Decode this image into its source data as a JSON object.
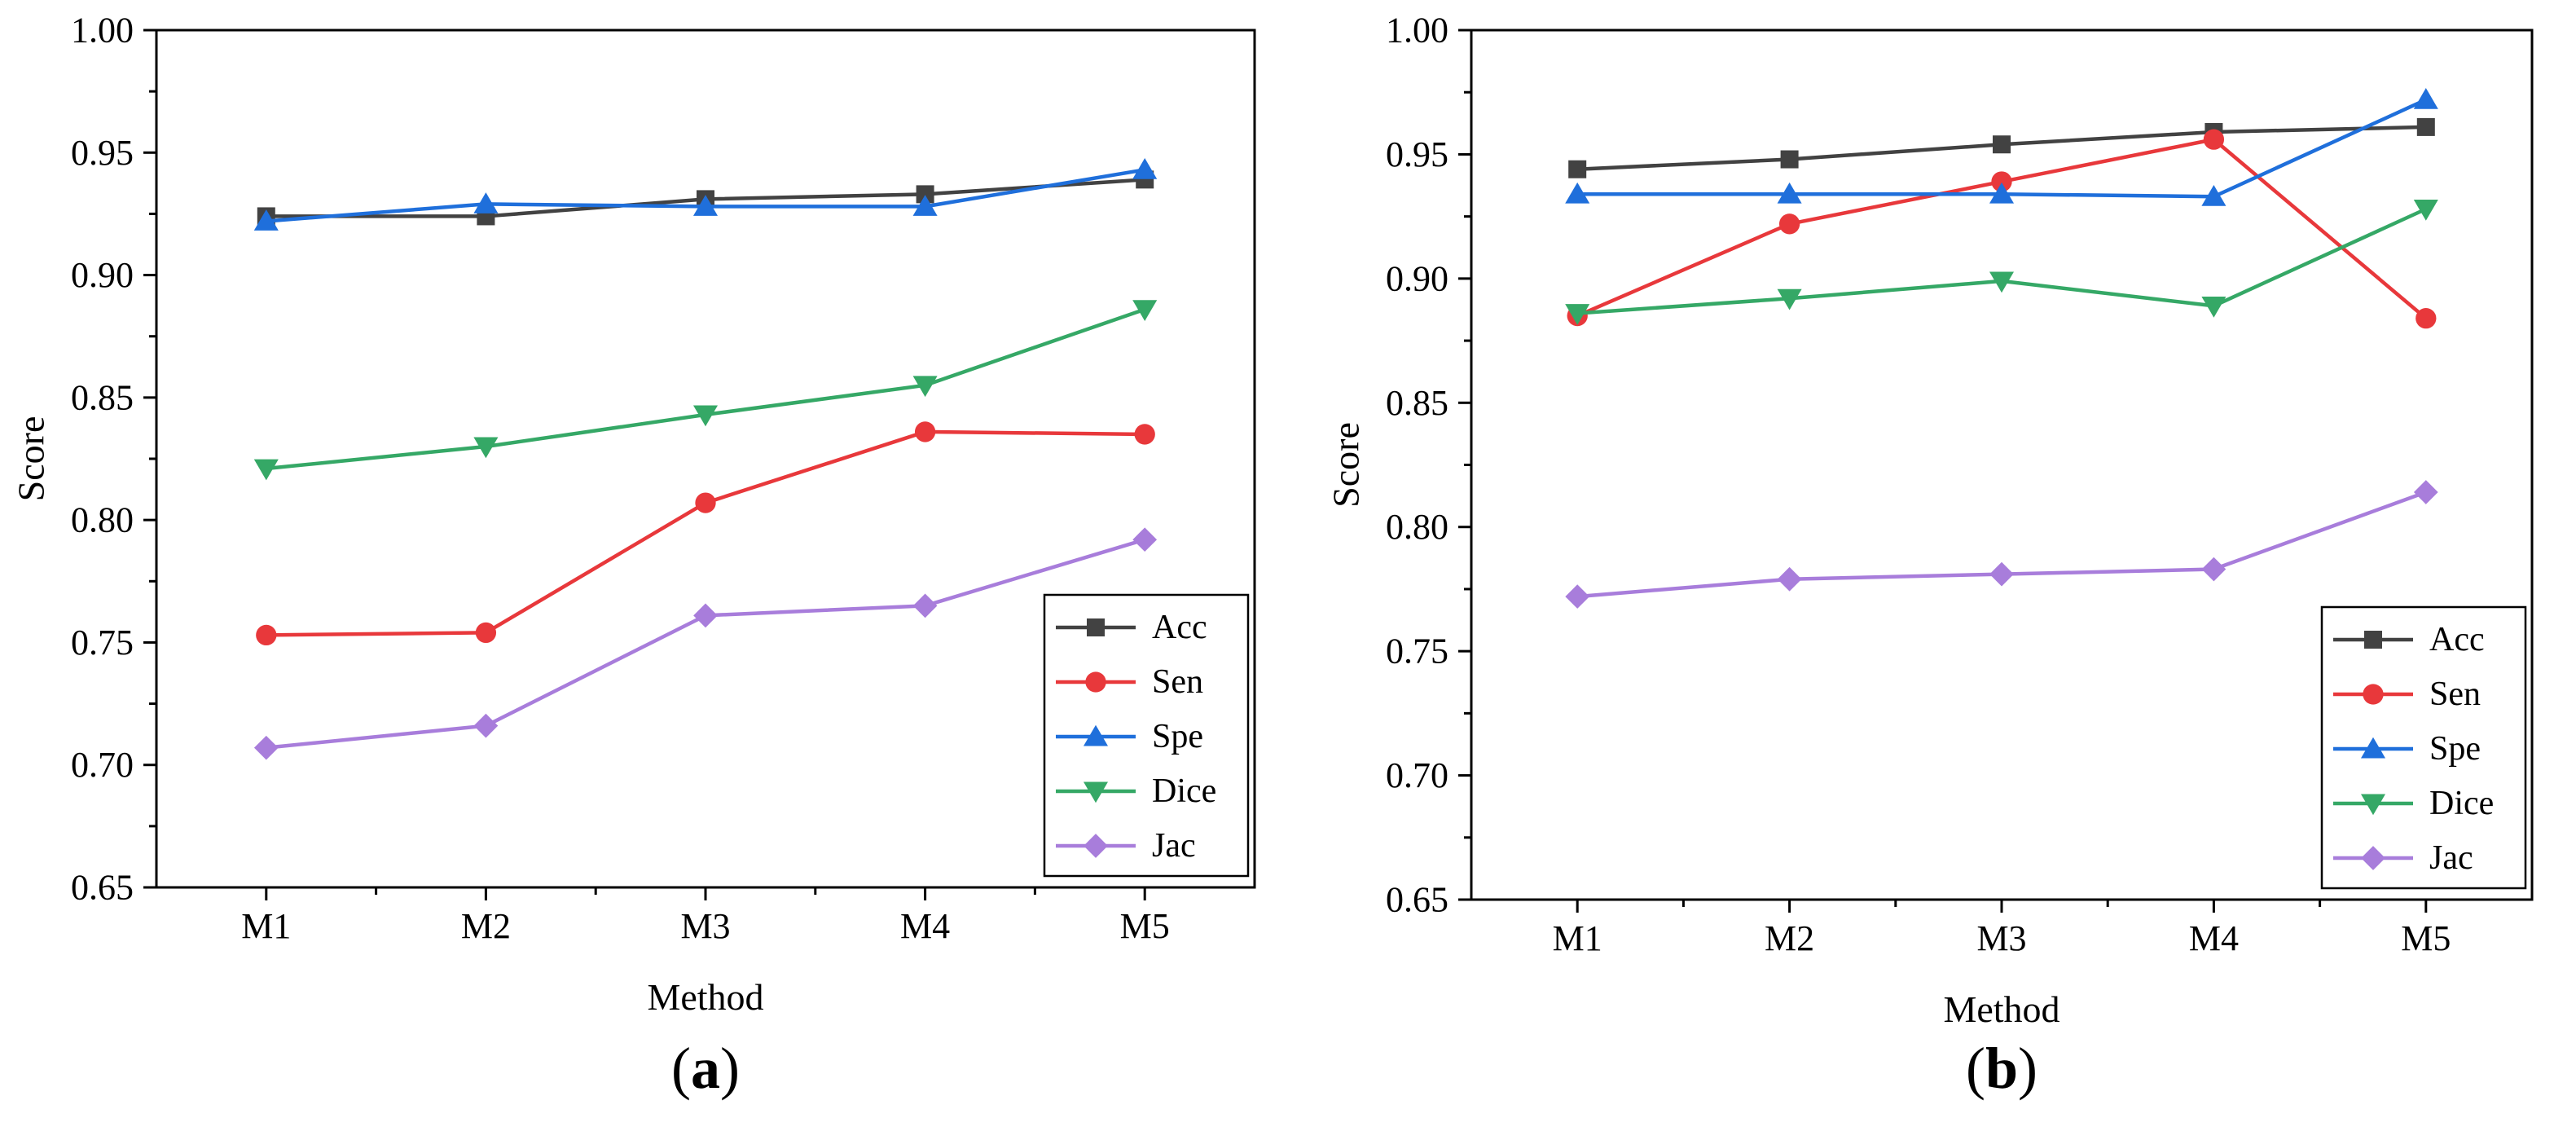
{
  "colors": {
    "Acc": "#424242",
    "Sen": "#e8383b",
    "Spe": "#1f6fdb",
    "Dice": "#35a866",
    "Jac": "#a87ddb"
  },
  "markers": {
    "Acc": "square",
    "Sen": "circle",
    "Spe": "triangle-up",
    "Dice": "triangle-down",
    "Jac": "diamond"
  },
  "chart_data": [
    {
      "type": "line",
      "panel_label": {
        "open": "(",
        "letter": "a",
        "close": ")"
      },
      "xlabel": "Method",
      "ylabel": "Score",
      "categories": [
        "M1",
        "M2",
        "M3",
        "M4",
        "M5"
      ],
      "ylim": [
        0.65,
        1.0
      ],
      "yticks": [
        "0.65",
        "0.70",
        "0.75",
        "0.80",
        "0.85",
        "0.90",
        "0.95",
        "1.00"
      ],
      "legend_position": "bottom-right",
      "series": [
        {
          "name": "Acc",
          "values": [
            0.924,
            0.924,
            0.931,
            0.933,
            0.939
          ]
        },
        {
          "name": "Sen",
          "values": [
            0.753,
            0.754,
            0.807,
            0.836,
            0.835
          ]
        },
        {
          "name": "Spe",
          "values": [
            0.922,
            0.929,
            0.928,
            0.928,
            0.943
          ]
        },
        {
          "name": "Dice",
          "values": [
            0.821,
            0.83,
            0.843,
            0.855,
            0.886
          ]
        },
        {
          "name": "Jac",
          "values": [
            0.707,
            0.716,
            0.761,
            0.765,
            0.792
          ]
        }
      ]
    },
    {
      "type": "line",
      "panel_label": {
        "open": "(",
        "letter": "b",
        "close": ")"
      },
      "xlabel": "Method",
      "ylabel": "Score",
      "categories": [
        "M1",
        "M2",
        "M3",
        "M4",
        "M5"
      ],
      "ylim": [
        0.65,
        1.0
      ],
      "yticks": [
        "0.65",
        "0.70",
        "0.75",
        "0.80",
        "0.85",
        "0.90",
        "0.95",
        "1.00"
      ],
      "legend_position": "bottom-right",
      "series": [
        {
          "name": "Acc",
          "values": [
            0.944,
            0.948,
            0.954,
            0.959,
            0.961
          ]
        },
        {
          "name": "Sen",
          "values": [
            0.885,
            0.922,
            0.939,
            0.956,
            0.884
          ]
        },
        {
          "name": "Spe",
          "values": [
            0.934,
            0.934,
            0.934,
            0.933,
            0.972
          ]
        },
        {
          "name": "Dice",
          "values": [
            0.886,
            0.892,
            0.899,
            0.889,
            0.928
          ]
        },
        {
          "name": "Jac",
          "values": [
            0.772,
            0.779,
            0.781,
            0.783,
            0.814
          ]
        }
      ]
    }
  ]
}
